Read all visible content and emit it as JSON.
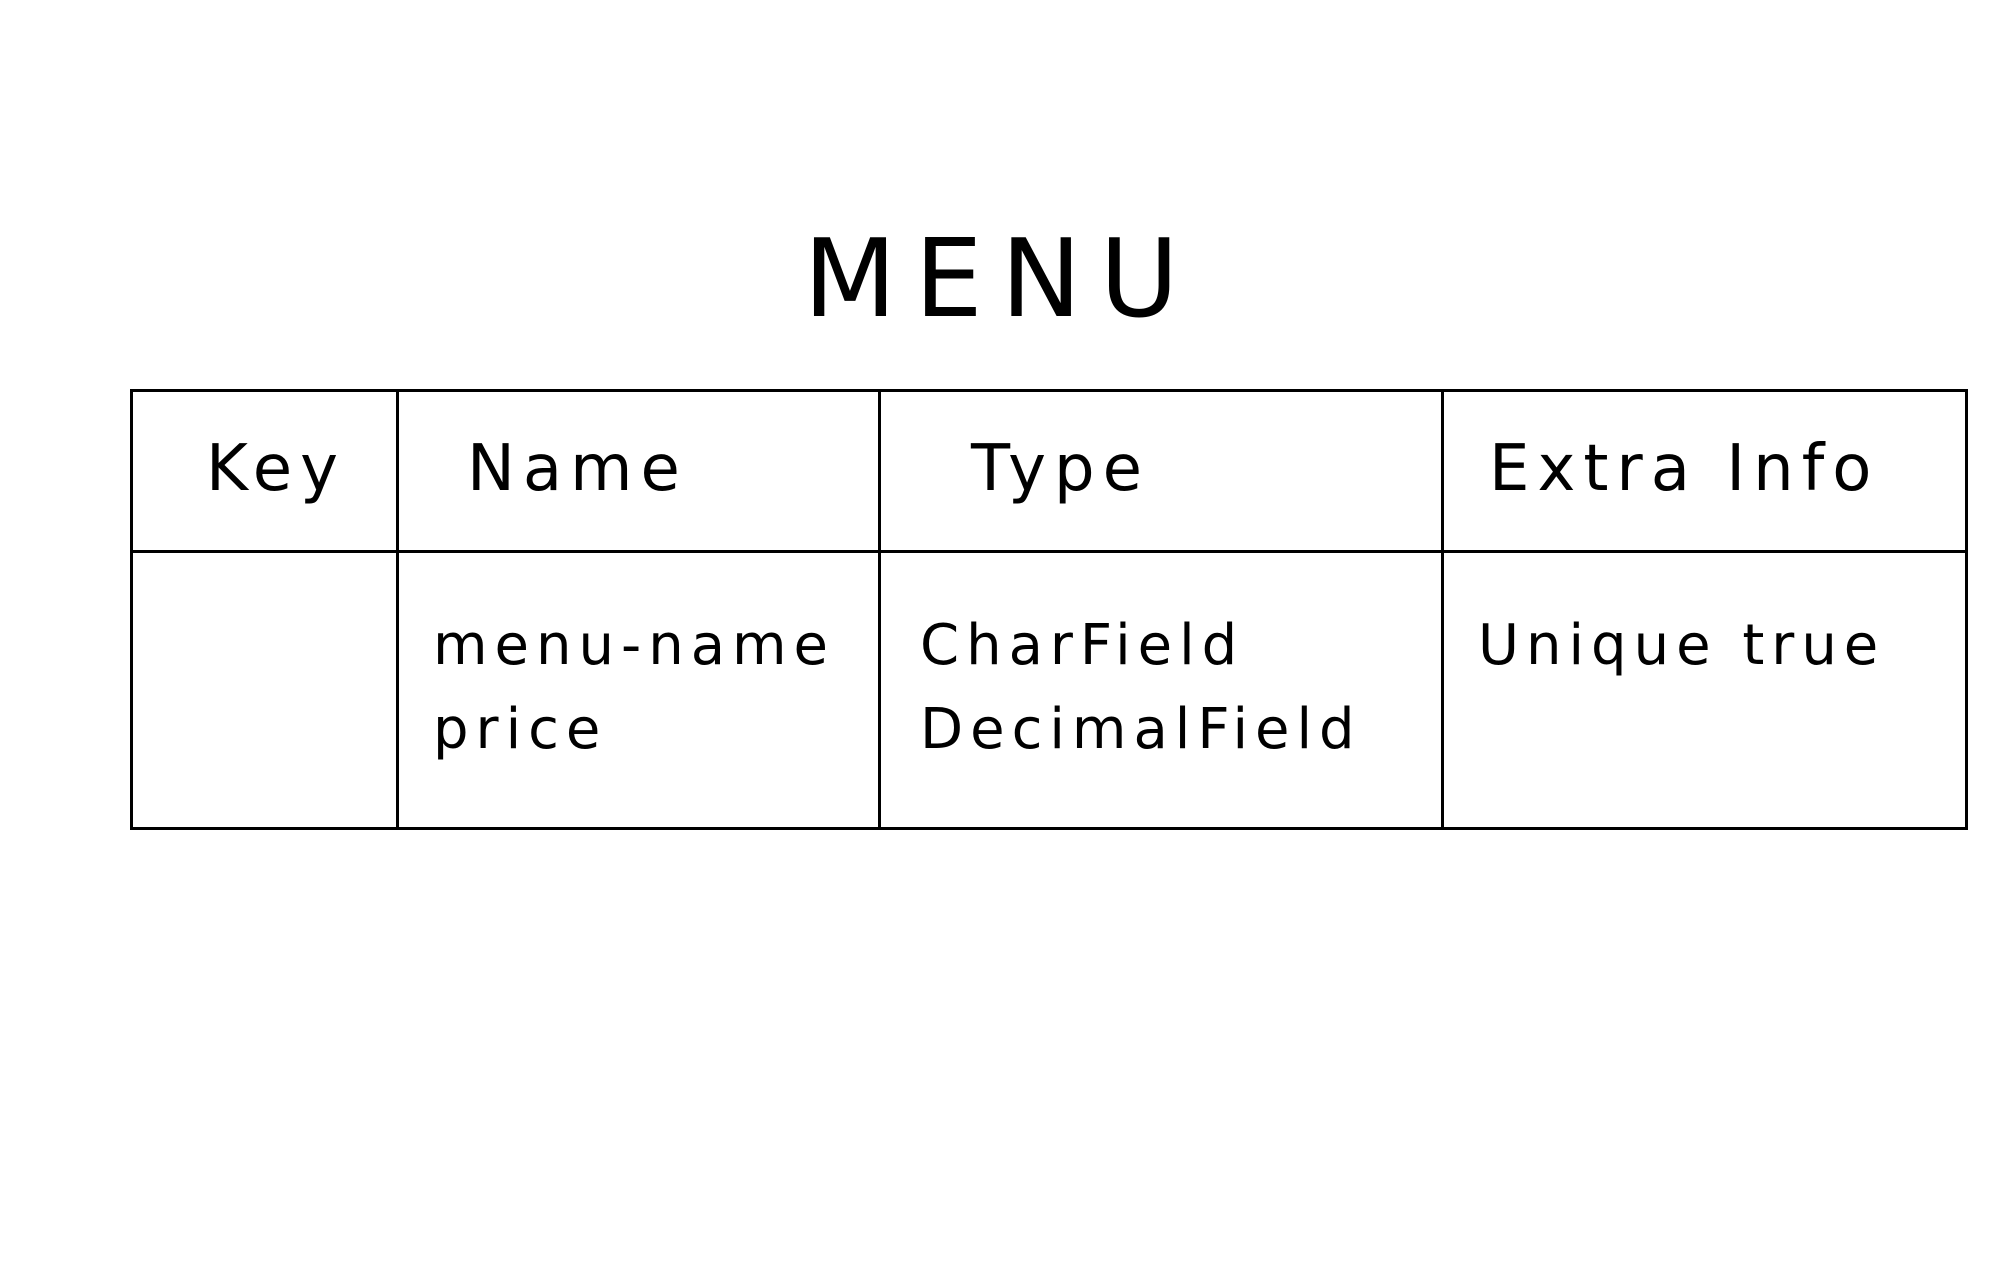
{
  "title": "MENU",
  "table": {
    "headers": [
      "Key",
      "Name",
      "Type",
      "Extra Info"
    ],
    "rows": [
      {
        "key": "",
        "name": [
          "menu-name",
          "price"
        ],
        "type": [
          "CharField",
          "DecimalField"
        ],
        "extra_info": [
          "Unique true"
        ]
      }
    ]
  }
}
